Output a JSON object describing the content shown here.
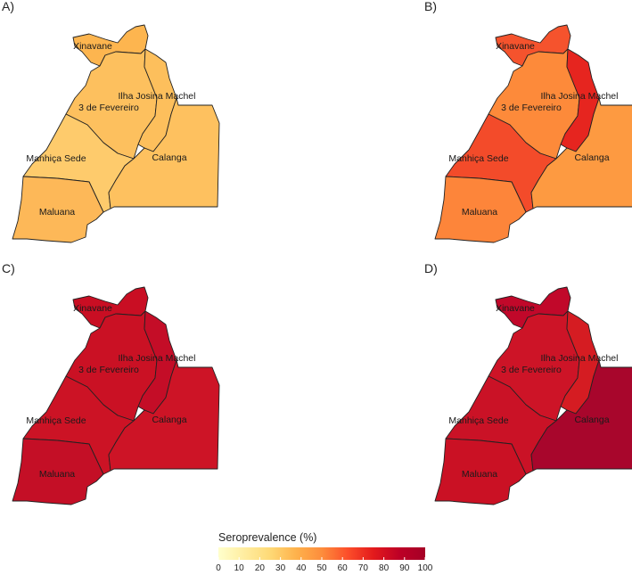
{
  "figure": {
    "legend": {
      "title": "Seroprevalence (%)",
      "ticks": [
        "0",
        "10",
        "20",
        "30",
        "40",
        "50",
        "60",
        "70",
        "80",
        "90",
        "100"
      ],
      "color_stops": [
        "#ffffcc",
        "#ffeda0",
        "#fed976",
        "#feb24c",
        "#fd8d3c",
        "#fc4e2a",
        "#e31a1c",
        "#bd0026",
        "#a50026"
      ]
    },
    "region_names": {
      "xinavane": "Xinavane",
      "ilha": "Ilha Josina Machel",
      "fevereiro": "3 de Fevereiro",
      "manhica": "Manhiça Sede",
      "calanga": "Calanga",
      "maluana": "Maluana"
    },
    "panels": [
      {
        "label": "A)",
        "fills": {
          "xinavane": "#fdb54f",
          "fevereiro": "#fdc05e",
          "ilha": "#fdbf5c",
          "manhica": "#fecb6c",
          "calanga": "#fec15f",
          "maluana": "#fdb858"
        }
      },
      {
        "label": "B)",
        "fills": {
          "xinavane": "#f5532d",
          "fevereiro": "#fd8a3a",
          "ilha": "#e6251f",
          "manhica": "#f34b2a",
          "calanga": "#fd9a41",
          "maluana": "#fd853a"
        }
      },
      {
        "label": "C)",
        "fills": {
          "xinavane": "#c90e23",
          "fevereiro": "#ca1124",
          "ilha": "#c40d27",
          "manhica": "#cc1325",
          "calanga": "#cd1426",
          "maluana": "#c40f26"
        }
      },
      {
        "label": "D)",
        "fills": {
          "xinavane": "#c1082a",
          "fevereiro": "#cd1427",
          "ilha": "#d51c22",
          "manhica": "#ca1226",
          "calanga": "#a8062c",
          "maluana": "#ca1124"
        }
      }
    ]
  }
}
